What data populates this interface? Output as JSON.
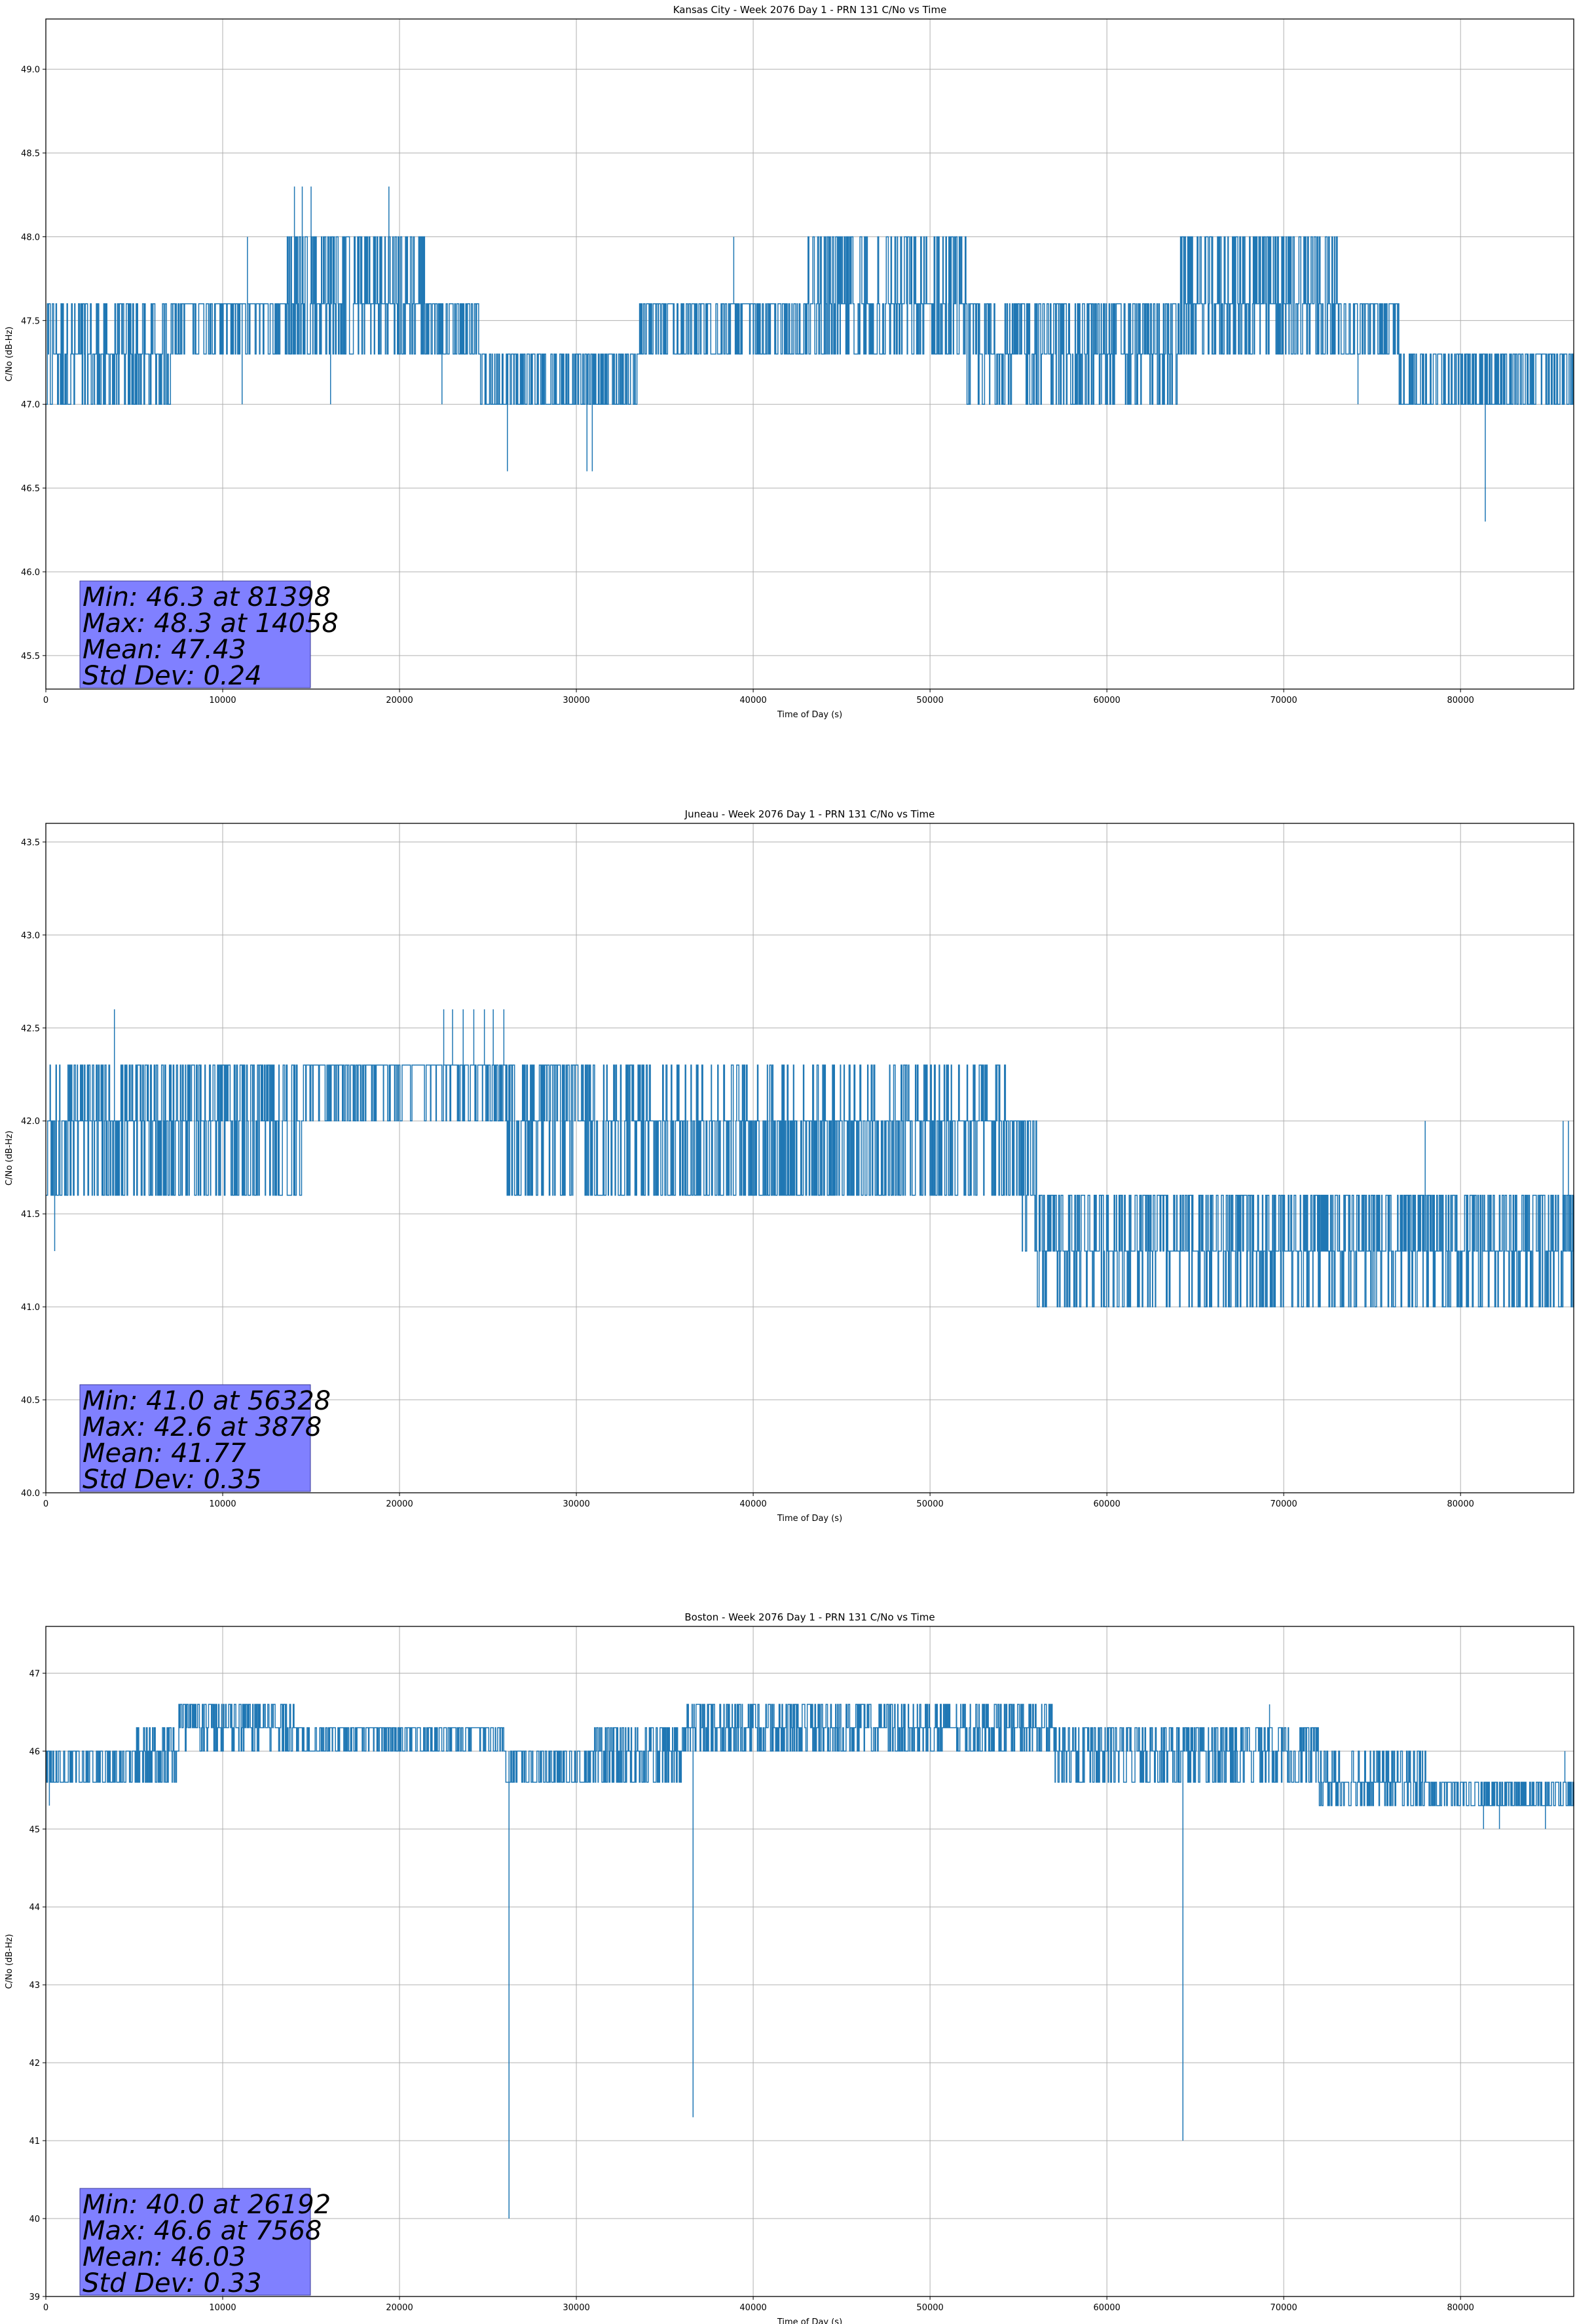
{
  "chart_data": [
    {
      "type": "line",
      "title": "Kansas City - Week 2076 Day 1 - PRN 131 C/No vs Time",
      "xlabel": "Time of Day (s)",
      "ylabel": "C/No (dB-Hz)",
      "xlim": [
        0,
        86400
      ],
      "ylim": [
        45.3,
        49.3
      ],
      "x_ticks": [
        "0",
        "10000",
        "20000",
        "30000",
        "40000",
        "50000",
        "60000",
        "70000",
        "80000"
      ],
      "y_ticks": [
        "45.5",
        "46.0",
        "46.5",
        "47.0",
        "47.5",
        "48.0",
        "48.5",
        "49.0"
      ],
      "grid": true,
      "series_color": "#1f77b4",
      "stats": {
        "min": "Min: 46.3 at 81398",
        "max": "Max: 48.3 at 14058",
        "mean": "Mean: 47.43",
        "std": "Std Dev: 0.24"
      },
      "segments": [
        {
          "x": [
            0,
            7000
          ],
          "levels": [
            47.0,
            47.3,
            47.6
          ],
          "weights": [
            0.35,
            0.4,
            0.25
          ]
        },
        {
          "x": [
            7000,
            13500
          ],
          "levels": [
            47.3,
            47.6
          ],
          "weights": [
            0.3,
            0.7
          ]
        },
        {
          "x": [
            13500,
            21500
          ],
          "levels": [
            47.3,
            47.6,
            48.0
          ],
          "weights": [
            0.3,
            0.35,
            0.35
          ]
        },
        {
          "x": [
            21500,
            24500
          ],
          "levels": [
            47.3,
            47.6
          ],
          "weights": [
            0.4,
            0.6
          ]
        },
        {
          "x": [
            24500,
            33500
          ],
          "levels": [
            47.0,
            47.3
          ],
          "weights": [
            0.5,
            0.5
          ]
        },
        {
          "x": [
            33500,
            43000
          ],
          "levels": [
            47.3,
            47.6
          ],
          "weights": [
            0.5,
            0.5
          ]
        },
        {
          "x": [
            43000,
            52000
          ],
          "levels": [
            47.3,
            47.6,
            48.0
          ],
          "weights": [
            0.35,
            0.4,
            0.25
          ]
        },
        {
          "x": [
            52000,
            64000
          ],
          "levels": [
            47.0,
            47.3,
            47.6
          ],
          "weights": [
            0.25,
            0.4,
            0.35
          ]
        },
        {
          "x": [
            64000,
            73000
          ],
          "levels": [
            47.3,
            47.6,
            48.0
          ],
          "weights": [
            0.3,
            0.35,
            0.35
          ]
        },
        {
          "x": [
            73000,
            76500
          ],
          "levels": [
            47.3,
            47.6
          ],
          "weights": [
            0.5,
            0.5
          ]
        },
        {
          "x": [
            76500,
            86400
          ],
          "levels": [
            47.0,
            47.3
          ],
          "weights": [
            0.5,
            0.5
          ]
        }
      ],
      "events": [
        {
          "x": 11400,
          "low": 47.3,
          "high": 48.0
        },
        {
          "x": 14058,
          "low": 47.6,
          "high": 48.3
        },
        {
          "x": 14500,
          "low": 47.6,
          "high": 48.3
        },
        {
          "x": 15000,
          "low": 47.6,
          "high": 48.3
        },
        {
          "x": 19400,
          "low": 47.6,
          "high": 48.3
        },
        {
          "x": 26100,
          "low": 46.6,
          "high": 47.3
        },
        {
          "x": 30600,
          "low": 46.6,
          "high": 47.3
        },
        {
          "x": 30900,
          "low": 46.6,
          "high": 47.3
        },
        {
          "x": 38900,
          "low": 47.6,
          "high": 48.0
        },
        {
          "x": 81398,
          "low": 46.3,
          "high": 47.0
        },
        {
          "x": 11100,
          "low": 47.0,
          "high": 47.3
        },
        {
          "x": 16100,
          "low": 47.0,
          "high": 47.3
        },
        {
          "x": 22400,
          "low": 47.0,
          "high": 47.3
        },
        {
          "x": 59700,
          "low": 47.0,
          "high": 47.3
        },
        {
          "x": 74200,
          "low": 47.0,
          "high": 47.3
        }
      ]
    },
    {
      "type": "line",
      "title": "Juneau - Week 2076 Day 1 - PRN 131 C/No vs Time",
      "xlabel": "Time of Day (s)",
      "ylabel": "C/No (dB-Hz)",
      "xlim": [
        0,
        86400
      ],
      "ylim": [
        40.0,
        43.6
      ],
      "x_ticks": [
        "0",
        "10000",
        "20000",
        "30000",
        "40000",
        "50000",
        "60000",
        "70000",
        "80000"
      ],
      "y_ticks": [
        "40.0",
        "40.5",
        "41.0",
        "41.5",
        "42.0",
        "42.5",
        "43.0",
        "43.5"
      ],
      "grid": true,
      "series_color": "#1f77b4",
      "stats": {
        "min": "Min: 41.0 at 56328",
        "max": "Max: 42.6 at 3878",
        "mean": "Mean: 41.77",
        "std": "Std Dev: 0.35"
      },
      "segments": [
        {
          "x": [
            0,
            5000
          ],
          "levels": [
            41.6,
            42.0,
            42.3
          ],
          "weights": [
            0.35,
            0.4,
            0.25
          ]
        },
        {
          "x": [
            5000,
            14500
          ],
          "levels": [
            41.6,
            42.0,
            42.3
          ],
          "weights": [
            0.3,
            0.35,
            0.35
          ]
        },
        {
          "x": [
            14500,
            26000
          ],
          "levels": [
            42.0,
            42.3
          ],
          "weights": [
            0.25,
            0.75
          ]
        },
        {
          "x": [
            26000,
            31000
          ],
          "levels": [
            41.6,
            42.0,
            42.3
          ],
          "weights": [
            0.25,
            0.35,
            0.4
          ]
        },
        {
          "x": [
            31000,
            55000
          ],
          "levels": [
            41.6,
            42.0,
            42.3
          ],
          "weights": [
            0.4,
            0.4,
            0.2
          ]
        },
        {
          "x": [
            55000,
            56000
          ],
          "levels": [
            41.3,
            41.6,
            42.0
          ],
          "weights": [
            0.35,
            0.35,
            0.3
          ]
        },
        {
          "x": [
            56000,
            86400
          ],
          "levels": [
            41.0,
            41.3,
            41.6
          ],
          "weights": [
            0.2,
            0.45,
            0.35
          ]
        }
      ],
      "events": [
        {
          "x": 500,
          "low": 41.3,
          "high": 41.6
        },
        {
          "x": 3878,
          "low": 42.3,
          "high": 42.6
        },
        {
          "x": 22500,
          "low": 42.3,
          "high": 42.6
        },
        {
          "x": 23000,
          "low": 42.3,
          "high": 42.6
        },
        {
          "x": 23600,
          "low": 42.3,
          "high": 42.6
        },
        {
          "x": 24200,
          "low": 42.3,
          "high": 42.6
        },
        {
          "x": 24800,
          "low": 42.3,
          "high": 42.6
        },
        {
          "x": 25300,
          "low": 42.3,
          "high": 42.6
        },
        {
          "x": 25900,
          "low": 42.3,
          "high": 42.6
        },
        {
          "x": 78000,
          "low": 41.6,
          "high": 42.0
        },
        {
          "x": 85800,
          "low": 41.6,
          "high": 42.0
        },
        {
          "x": 86100,
          "low": 41.6,
          "high": 42.0
        }
      ]
    },
    {
      "type": "line",
      "title": "Boston - Week 2076 Day 1 - PRN 131 C/No vs Time",
      "xlabel": "Time of Day (s)",
      "ylabel": "C/No (dB-Hz)",
      "xlim": [
        0,
        86400
      ],
      "ylim": [
        39.0,
        47.6
      ],
      "x_ticks": [
        "0",
        "10000",
        "20000",
        "30000",
        "40000",
        "50000",
        "60000",
        "70000",
        "80000"
      ],
      "y_ticks": [
        "39",
        "40",
        "41",
        "42",
        "43",
        "44",
        "45",
        "46",
        "47"
      ],
      "grid": true,
      "series_color": "#1f77b4",
      "stats": {
        "min": "Min: 40.0 at 26192",
        "max": "Max: 46.6 at 7568",
        "mean": "Mean: 46.03",
        "std": "Std Dev: 0.33"
      },
      "segments": [
        {
          "x": [
            0,
            5000
          ],
          "levels": [
            45.6,
            46.0
          ],
          "weights": [
            0.55,
            0.45
          ]
        },
        {
          "x": [
            5000,
            7500
          ],
          "levels": [
            45.6,
            46.0,
            46.3
          ],
          "weights": [
            0.3,
            0.35,
            0.35
          ]
        },
        {
          "x": [
            7500,
            14000
          ],
          "levels": [
            46.0,
            46.3,
            46.6
          ],
          "weights": [
            0.25,
            0.4,
            0.35
          ]
        },
        {
          "x": [
            14000,
            26000
          ],
          "levels": [
            46.0,
            46.3
          ],
          "weights": [
            0.4,
            0.6
          ]
        },
        {
          "x": [
            26000,
            31000
          ],
          "levels": [
            45.6,
            46.0
          ],
          "weights": [
            0.55,
            0.45
          ]
        },
        {
          "x": [
            31000,
            36000
          ],
          "levels": [
            45.6,
            46.0,
            46.3
          ],
          "weights": [
            0.35,
            0.3,
            0.35
          ]
        },
        {
          "x": [
            36000,
            57000
          ],
          "levels": [
            46.0,
            46.3,
            46.6
          ],
          "weights": [
            0.3,
            0.4,
            0.3
          ]
        },
        {
          "x": [
            57000,
            72000
          ],
          "levels": [
            45.6,
            46.0,
            46.3
          ],
          "weights": [
            0.3,
            0.35,
            0.35
          ]
        },
        {
          "x": [
            72000,
            78000
          ],
          "levels": [
            45.3,
            45.6,
            46.0
          ],
          "weights": [
            0.3,
            0.4,
            0.3
          ]
        },
        {
          "x": [
            78000,
            86400
          ],
          "levels": [
            45.3,
            45.6
          ],
          "weights": [
            0.5,
            0.5
          ]
        }
      ],
      "events": [
        {
          "x": 26192,
          "low": 40.0,
          "high": 46.0
        },
        {
          "x": 36600,
          "low": 41.3,
          "high": 46.0
        },
        {
          "x": 64300,
          "low": 41.0,
          "high": 46.0
        },
        {
          "x": 69200,
          "low": 46.3,
          "high": 46.6
        },
        {
          "x": 81300,
          "low": 45.0,
          "high": 45.3
        },
        {
          "x": 82200,
          "low": 45.0,
          "high": 45.3
        },
        {
          "x": 84800,
          "low": 45.0,
          "high": 45.3
        },
        {
          "x": 85900,
          "low": 45.6,
          "high": 46.0
        },
        {
          "x": 200,
          "low": 45.3,
          "high": 45.6
        }
      ]
    }
  ]
}
